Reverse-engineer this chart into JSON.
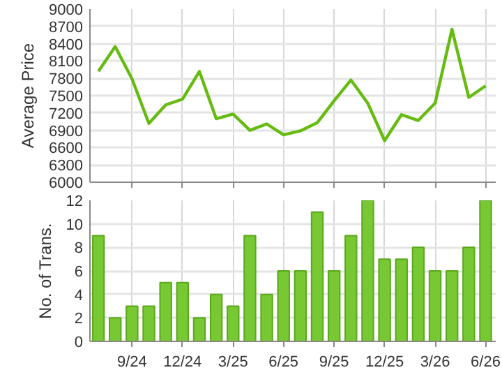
{
  "chart_data": [
    {
      "type": "line",
      "ylabel": "Average Price",
      "categories": [
        null,
        null,
        null,
        null,
        null,
        null,
        null,
        null,
        null,
        null,
        null,
        null,
        null,
        null,
        null,
        null,
        null,
        null,
        null,
        null,
        null,
        null,
        null,
        null
      ],
      "series": [
        {
          "color": "#66bb11",
          "values": [
            7920,
            8350,
            7790,
            7020,
            7340,
            7440,
            7920,
            7100,
            7180,
            6900,
            7010,
            6820,
            6890,
            7030,
            7410,
            7770,
            7370,
            6720,
            7170,
            7070,
            7370,
            8650,
            7470,
            7670
          ]
        }
      ],
      "ylim": [
        6000,
        9000
      ],
      "yticks": [
        6000,
        6300,
        6600,
        6900,
        7200,
        7500,
        7800,
        8100,
        8400,
        8700,
        9000
      ],
      "grid": true,
      "tick_labels": "y",
      "marker": "none",
      "line_style": "solid"
    },
    {
      "type": "bar",
      "ylabel": "No. of Trans.",
      "categories": [
        null,
        null,
        "9/24",
        null,
        null,
        "12/24",
        null,
        null,
        "3/25",
        null,
        null,
        "6/25",
        null,
        null,
        "9/25",
        null,
        null,
        "12/25",
        null,
        null,
        "3/26",
        null,
        null,
        "6/26"
      ],
      "series": [
        {
          "color": "#77c832",
          "values": [
            9,
            2,
            3,
            3,
            5,
            5,
            2,
            4,
            3,
            9,
            4,
            6,
            6,
            11,
            6,
            9,
            12,
            7,
            7,
            8,
            6,
            6,
            8,
            12
          ]
        }
      ],
      "ylim": [
        0,
        12
      ],
      "yticks": [
        0,
        2,
        4,
        6,
        8,
        10,
        12
      ],
      "grid": true
    }
  ]
}
